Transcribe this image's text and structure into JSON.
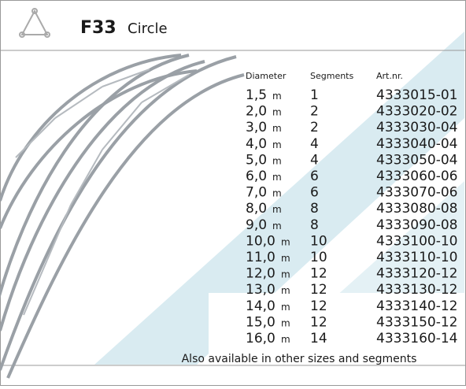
{
  "header": {
    "code": "F33",
    "title": "Circle"
  },
  "table": {
    "headers": [
      "Diameter",
      "Segments",
      "Art.nr."
    ],
    "rows": [
      [
        "1,5",
        "m",
        "1",
        "4333015-01"
      ],
      [
        "2,0",
        "m",
        "2",
        "4333020-02"
      ],
      [
        "3,0",
        "m",
        "2",
        "4333030-04"
      ],
      [
        "4,0",
        "m",
        "4",
        "4333040-04"
      ],
      [
        "5,0",
        "m",
        "4",
        "4333050-04"
      ],
      [
        "6,0",
        "m",
        "6",
        "4333060-06"
      ],
      [
        "7,0",
        "m",
        "6",
        "4333070-06"
      ],
      [
        "8,0",
        "m",
        "8",
        "4333080-08"
      ],
      [
        "9,0",
        "m",
        "8",
        "4333090-08"
      ],
      [
        "10,0",
        "m",
        "10",
        "4333100-10"
      ],
      [
        "11,0",
        "m",
        "10",
        "4333110-10"
      ],
      [
        "12,0",
        "m",
        "12",
        "4333120-12"
      ],
      [
        "13,0",
        "m",
        "12",
        "4333130-12"
      ],
      [
        "14,0",
        "m",
        "12",
        "4333140-12"
      ],
      [
        "15,0",
        "m",
        "12",
        "4333150-12"
      ],
      [
        "16,0",
        "m",
        "14",
        "4333160-14"
      ]
    ]
  },
  "footer": "Also available in other sizes and segments"
}
